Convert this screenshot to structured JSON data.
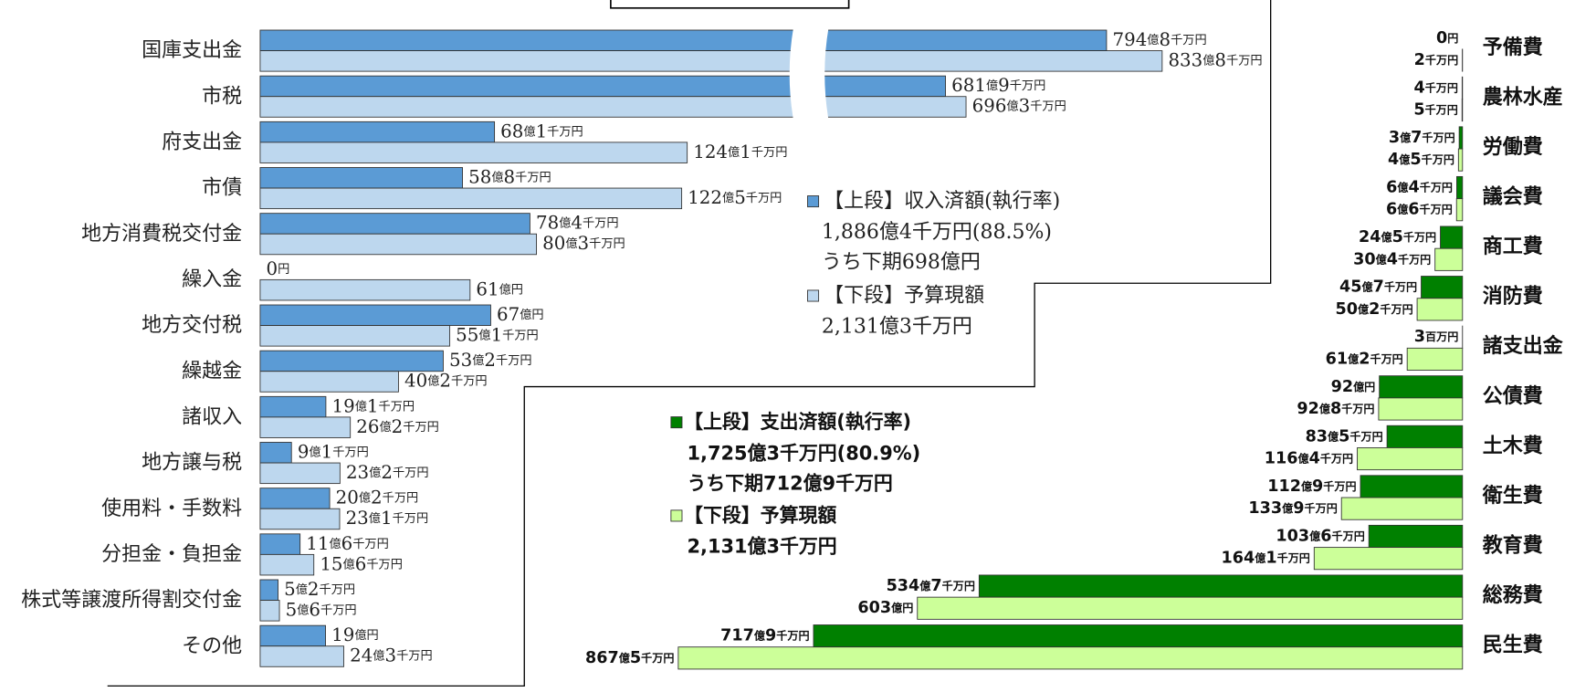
{
  "chart_data": [
    {
      "type": "bar",
      "orientation": "horizontal",
      "bar_direction": "right",
      "categories": [
        "国庫支出金",
        "市税",
        "府支出金",
        "市債",
        "地方消費税交付金",
        "繰入金",
        "地方交付税",
        "繰越金",
        "諸収入",
        "地方譲与税",
        "使用料・手数料",
        "分担金・負担金",
        "株式等譲渡所得割交付金",
        "その他"
      ],
      "series": [
        {
          "name": "【上段】収入済額(執行率)",
          "color": "#5b9bd5",
          "values": [
            794.8,
            681.9,
            68.1,
            58.8,
            78.4,
            0,
            67,
            53.2,
            19.1,
            9.1,
            20.2,
            11.6,
            5.2,
            19
          ],
          "value_labels": [
            "794億8千万円",
            "681億9千万円",
            "68億1千万円",
            "58億8千万円",
            "78億4千万円",
            "0円",
            "67億円",
            "53億2千万円",
            "19億1千万円",
            "9億1千万円",
            "20億2千万円",
            "11億6千万円",
            "5億2千万円",
            "19億円"
          ]
        },
        {
          "name": "【下段】予算現額",
          "color": "#bdd7ee",
          "values": [
            833.8,
            696.3,
            124.1,
            122.5,
            80.3,
            61,
            55.1,
            40.2,
            26.2,
            23.2,
            23.1,
            15.6,
            5.6,
            24.3
          ],
          "value_labels": [
            "833億8千万円",
            "696億3千万円",
            "124億1千万円",
            "122億5千万円",
            "80億3千万円",
            "61億円",
            "55億1千万円",
            "40億2千万円",
            "26億2千万円",
            "23億2千万円",
            "23億1千万円",
            "15億6千万円",
            "5億6千万円",
            "24億3千万円"
          ]
        }
      ],
      "legend_notes": [
        [
          "1,886億4千万円(88.5%)",
          "うち下期698億円"
        ],
        [
          "2,131億3千万円"
        ]
      ],
      "xlim": [
        0,
        850
      ],
      "xbreak": [
        155,
        600
      ]
    },
    {
      "type": "bar",
      "orientation": "horizontal",
      "bar_direction": "left",
      "categories": [
        "予備費",
        "農林水産",
        "労働費",
        "議会費",
        "商工費",
        "消防費",
        "諸支出金",
        "公債費",
        "土木費",
        "衛生費",
        "教育費",
        "総務費",
        "民生費"
      ],
      "series": [
        {
          "name": "【上段】支出済額(執行率)",
          "color": "#008000",
          "values": [
            0,
            0.4,
            3.7,
            6.4,
            24.5,
            45.7,
            0.03,
            92,
            83.5,
            112.9,
            103.6,
            534.7,
            717.9
          ],
          "value_labels": [
            "0円",
            "4千万円",
            "3億7千万円",
            "6億4千万円",
            "24億5千万円",
            "45億7千万円",
            "3百万円",
            "92億円",
            "83億5千万円",
            "112億9千万円",
            "103億6千万円",
            "534億7千万円",
            "717億9千万円"
          ]
        },
        {
          "name": "【下段】予算現額",
          "color": "#ccff99",
          "values": [
            0.2,
            0.5,
            4.5,
            6.6,
            30.4,
            50.2,
            61.2,
            92.8,
            116.4,
            133.9,
            164.1,
            603,
            867.5
          ],
          "value_labels": [
            "2千万円",
            "5千万円",
            "4億5千万円",
            "6億6千万円",
            "30億4千万円",
            "50億2千万円",
            "61億2千万円",
            "92億8千万円",
            "116億4千万円",
            "133億9千万円",
            "164億1千万円",
            "603億円",
            "867億5千万円"
          ]
        }
      ],
      "legend_notes": [
        [
          "1,725億3千万円(80.9%)",
          "うち下期712億9千万円"
        ],
        [
          "2,131億3千万円"
        ]
      ],
      "xlim": [
        0,
        870
      ]
    }
  ]
}
